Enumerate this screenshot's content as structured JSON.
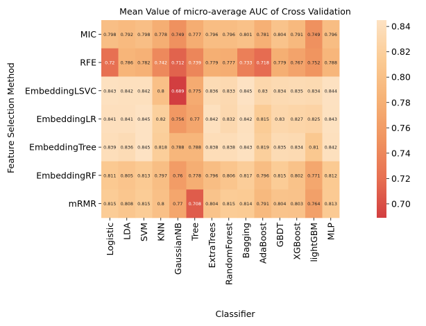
{
  "chart_data": {
    "type": "heatmap",
    "title": "Mean Value of micro-average AUC of Cross Validation",
    "xlabel": "Classifier",
    "ylabel": "Feature Selection Method",
    "x_categories": [
      "Logistic",
      "LDA",
      "SVM",
      "KNN",
      "GaussianNB",
      "Tree",
      "ExtraTrees",
      "RandomForest",
      "Bagging",
      "AdaBoost",
      "GBDT",
      "XGBoost",
      "lightGBM",
      "MLP"
    ],
    "y_categories": [
      "MIC",
      "RFE",
      "EmbeddingLSVC",
      "EmbeddingLR",
      "EmbeddingTree",
      "EmbeddingRF",
      "mRMR"
    ],
    "values": [
      [
        0.798,
        0.792,
        0.798,
        0.778,
        0.749,
        0.777,
        0.796,
        0.796,
        0.801,
        0.781,
        0.804,
        0.791,
        0.749,
        0.796
      ],
      [
        0.72,
        0.786,
        0.782,
        0.742,
        0.712,
        0.739,
        0.779,
        0.777,
        0.733,
        0.718,
        0.779,
        0.767,
        0.752,
        0.788
      ],
      [
        0.843,
        0.842,
        0.842,
        0.8,
        0.689,
        0.775,
        0.836,
        0.833,
        0.845,
        0.83,
        0.834,
        0.835,
        0.834,
        0.844
      ],
      [
        0.841,
        0.841,
        0.845,
        0.82,
        0.756,
        0.77,
        0.842,
        0.832,
        0.842,
        0.815,
        0.83,
        0.827,
        0.825,
        0.843
      ],
      [
        0.839,
        0.836,
        0.845,
        0.818,
        0.788,
        0.788,
        0.838,
        0.838,
        0.843,
        0.819,
        0.835,
        0.834,
        0.81,
        0.842
      ],
      [
        0.811,
        0.805,
        0.813,
        0.797,
        0.76,
        0.778,
        0.796,
        0.806,
        0.817,
        0.796,
        0.815,
        0.802,
        0.771,
        0.812
      ],
      [
        0.815,
        0.808,
        0.815,
        0.8,
        0.77,
        0.708,
        0.804,
        0.815,
        0.814,
        0.791,
        0.804,
        0.803,
        0.764,
        0.813
      ]
    ],
    "colorbar": {
      "range": [
        0.689,
        0.845
      ],
      "ticks": [
        "0.70",
        "0.72",
        "0.74",
        "0.76",
        "0.78",
        "0.80",
        "0.82",
        "0.84"
      ]
    },
    "colormap": [
      "#d23e40",
      "#e77052",
      "#f09460",
      "#f6b276",
      "#fbcb94",
      "#fde2c3"
    ],
    "grid": false
  }
}
